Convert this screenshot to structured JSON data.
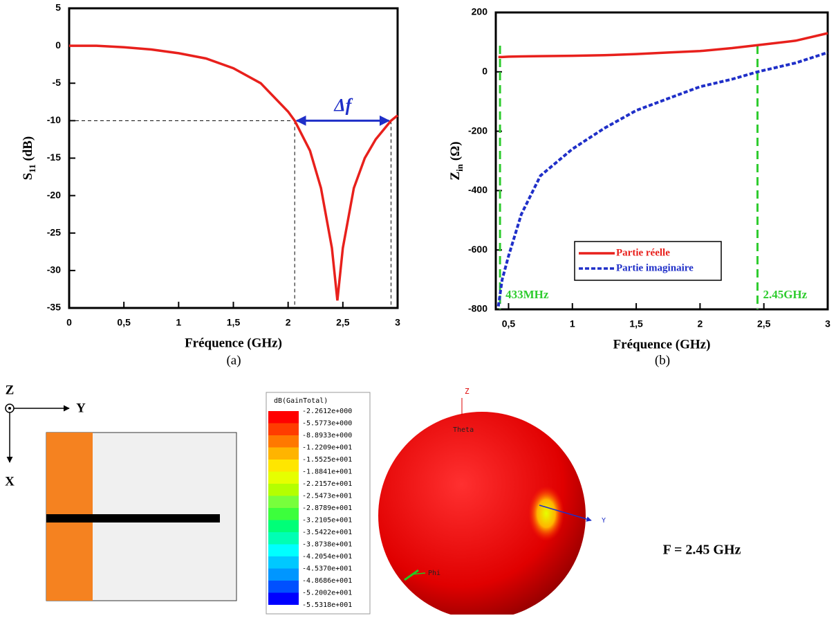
{
  "chart_data": [
    {
      "type": "line",
      "xlabel": "Fréquence (GHz)",
      "ylabel": "S",
      "ylabel_sub": "11",
      "ylabel_unit": " (dB)",
      "x": [
        0,
        0.25,
        0.5,
        0.75,
        1,
        1.25,
        1.5,
        1.75,
        2,
        2.06,
        2.2,
        2.3,
        2.4,
        2.45,
        2.5,
        2.6,
        2.7,
        2.8,
        2.94,
        3
      ],
      "values": [
        0,
        0,
        -0.2,
        -0.5,
        -1,
        -1.7,
        -3,
        -5,
        -8.8,
        -10,
        -14,
        -19,
        -27,
        -34,
        -27,
        -19,
        -15,
        -12.5,
        -10,
        -9.3
      ],
      "color": "#e8201c",
      "xlim": [
        0,
        3
      ],
      "ylim": [
        -35,
        5
      ],
      "xticks": [
        0,
        {
          "value": 0.5,
          "label": "0,5"
        },
        1,
        {
          "value": 1.5,
          "label": "1,5"
        },
        2,
        {
          "value": 2.5,
          "label": "2,5"
        },
        3
      ],
      "yticks": [
        -35,
        -30,
        -25,
        -20,
        -15,
        -10,
        -5,
        0,
        5
      ],
      "hline": -10,
      "vlines": [
        2.06,
        2.94
      ],
      "annotation": "Δf"
    },
    {
      "type": "line",
      "xlabel": "Fréquence (GHz)",
      "ylabel": "Z",
      "ylabel_sub": "in",
      "ylabel_unit": " (Ω)",
      "x": [
        0.42,
        0.45,
        0.5,
        0.6,
        0.75,
        1,
        1.25,
        1.5,
        1.75,
        2,
        2.25,
        2.45,
        2.75,
        3
      ],
      "series": [
        {
          "name": "Partie réelle",
          "color": "#e8201c",
          "dash": false,
          "values": [
            50,
            50,
            51,
            52,
            53,
            54,
            56,
            60,
            65,
            70,
            80,
            90,
            105,
            130
          ]
        },
        {
          "name": "Partie imaginaire",
          "color": "#1f2fc8",
          "dash": true,
          "values": [
            -790,
            -700,
            -620,
            -480,
            -350,
            -260,
            -190,
            -130,
            -90,
            -50,
            -25,
            0,
            30,
            65
          ]
        }
      ],
      "xlim": [
        0.4,
        3
      ],
      "ylim": [
        -800,
        200
      ],
      "xticks": [
        {
          "value": 0.5,
          "label": "0,5"
        },
        1,
        {
          "value": 1.5,
          "label": "1,5"
        },
        2,
        {
          "value": 2.5,
          "label": "2,5"
        },
        3
      ],
      "yticks": [
        -800,
        -600,
        -400,
        -200,
        0,
        200
      ],
      "vlines": [
        {
          "value": 0.433,
          "label": "433MHz"
        },
        {
          "value": 2.45,
          "label": "2.45GHz"
        }
      ],
      "vline_color": "#2ecc2e",
      "legend": "lower center"
    }
  ],
  "captions": [
    "(a)",
    "(b)"
  ],
  "axes_diagram": {
    "z": "Z",
    "y": "Y",
    "x": "X"
  },
  "colorbar": {
    "title": "dB(GainTotal)",
    "labels": [
      "-2.2612e+000",
      "-5.5773e+000",
      "-8.8933e+000",
      "-1.2209e+001",
      "-1.5525e+001",
      "-1.8841e+001",
      "-2.2157e+001",
      "-2.5473e+001",
      "-2.8789e+001",
      "-3.2105e+001",
      "-3.5422e+001",
      "-3.8738e+001",
      "-4.2054e+001",
      "-4.5370e+001",
      "-4.8686e+001",
      "-5.2002e+001",
      "-5.5318e+001"
    ],
    "colors": [
      "#ff0000",
      "#ff3c00",
      "#ff7800",
      "#ffb400",
      "#ffe600",
      "#e6ff00",
      "#b4ff00",
      "#78ff3c",
      "#3cff3c",
      "#00ff78",
      "#00ffb4",
      "#00ffff",
      "#00c8ff",
      "#0096ff",
      "#0050ff",
      "#0000ff"
    ]
  },
  "pattern": {
    "z": "Z",
    "theta": "Theta",
    "y": "Y",
    "phi": "Phi"
  },
  "frequency_label": "F = 2.45 GHz"
}
